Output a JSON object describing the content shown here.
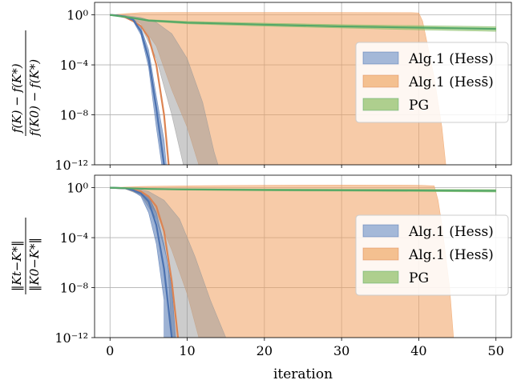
{
  "chart_data": [
    {
      "type": "line",
      "ylabel": {
        "top_left": "f(K)",
        "top_op": "−",
        "top_right": "f(K*)",
        "bottom_left": "f(K0)",
        "bottom_op": "−",
        "bottom_right": "f(K*)"
      },
      "y_scale": "log",
      "ylim_exp": [
        -12,
        1
      ],
      "xlim": [
        -2,
        52
      ],
      "x_ticks": [
        0,
        10,
        20,
        30,
        40,
        50
      ],
      "y_ticks": [
        {
          "exp": 0,
          "label": "10⁰"
        },
        {
          "exp": -4,
          "label": "10⁻⁴"
        },
        {
          "exp": -8,
          "label": "10⁻⁸"
        },
        {
          "exp": -12,
          "label": "10⁻¹²"
        }
      ],
      "grid": true,
      "legend_position": "center-right",
      "series": [
        {
          "name": "Alg.1 (Hess)",
          "color": "#4c72b0",
          "fill": "#4c72b0",
          "mean": [
            [
              0,
              0
            ],
            [
              1,
              -0.05
            ],
            [
              2,
              -0.15
            ],
            [
              3,
              -0.4
            ],
            [
              4,
              -1.3
            ],
            [
              5,
              -3.5
            ],
            [
              6,
              -7.5
            ],
            [
              7,
              -12
            ]
          ],
          "band_lower": [
            [
              0,
              0
            ],
            [
              1,
              -0.06
            ],
            [
              2,
              -0.2
            ],
            [
              3,
              -0.5
            ],
            [
              4,
              -1.6
            ],
            [
              5,
              -4.2
            ],
            [
              6,
              -9
            ],
            [
              6.7,
              -12
            ]
          ],
          "band_upper": [
            [
              0,
              0
            ],
            [
              1,
              -0.04
            ],
            [
              2,
              -0.1
            ],
            [
              3,
              -0.3
            ],
            [
              4,
              -1.0
            ],
            [
              5,
              -2.8
            ],
            [
              6,
              -6.5
            ],
            [
              7,
              -10
            ],
            [
              7.3,
              -12
            ]
          ]
        },
        {
          "name": "Alg.1 (Hess̄)",
          "color": "#dd8452",
          "fill": "#f0a060",
          "mean": [
            [
              0,
              0
            ],
            [
              1,
              -0.05
            ],
            [
              2,
              -0.2
            ],
            [
              3,
              -0.5
            ],
            [
              4,
              -0.9
            ],
            [
              5,
              -1.8
            ],
            [
              6,
              -4.0
            ],
            [
              7,
              -8.0
            ],
            [
              7.6,
              -12
            ]
          ],
          "band_lower": [
            [
              0,
              0
            ],
            [
              2,
              -0.1
            ],
            [
              4,
              -0.7
            ],
            [
              6,
              -2.5
            ],
            [
              8,
              -6
            ],
            [
              10,
              -9
            ],
            [
              11.5,
              -12
            ]
          ],
          "band_upper": [
            [
              0,
              0
            ],
            [
              2,
              0.1
            ],
            [
              4,
              0.18
            ],
            [
              8,
              0.2
            ],
            [
              20,
              0.2
            ],
            [
              30,
              0.19
            ],
            [
              39,
              0.18
            ],
            [
              40,
              0.16
            ],
            [
              40.5,
              -0.5
            ],
            [
              41,
              -2
            ],
            [
              42,
              -5
            ],
            [
              43,
              -9
            ],
            [
              43.5,
              -12
            ]
          ]
        },
        {
          "name": "PG",
          "color": "#55a868",
          "fill": "#8cc06a",
          "mean": [
            [
              0,
              0
            ],
            [
              3,
              -0.25
            ],
            [
              5,
              -0.45
            ],
            [
              10,
              -0.62
            ],
            [
              20,
              -0.78
            ],
            [
              30,
              -0.92
            ],
            [
              40,
              -1.02
            ],
            [
              50,
              -1.12
            ]
          ],
          "band_lower": [
            [
              0,
              0
            ],
            [
              3,
              -0.3
            ],
            [
              5,
              -0.52
            ],
            [
              10,
              -0.72
            ],
            [
              20,
              -0.9
            ],
            [
              30,
              -1.05
            ],
            [
              40,
              -1.2
            ],
            [
              50,
              -1.32
            ]
          ],
          "band_upper": [
            [
              0,
              0
            ],
            [
              3,
              -0.2
            ],
            [
              5,
              -0.38
            ],
            [
              10,
              -0.52
            ],
            [
              20,
              -0.66
            ],
            [
              30,
              -0.78
            ],
            [
              40,
              -0.86
            ],
            [
              50,
              -0.94
            ]
          ]
        },
        {
          "name": "grey envelope",
          "color": "#888888",
          "fill": "#999999",
          "band_lower": [
            [
              0,
              0
            ],
            [
              2,
              -0.15
            ],
            [
              4,
              -0.9
            ],
            [
              6,
              -3.5
            ],
            [
              8,
              -8
            ],
            [
              9.5,
              -12
            ]
          ],
          "band_upper": [
            [
              0,
              0
            ],
            [
              2,
              -0.05
            ],
            [
              4,
              -0.2
            ],
            [
              6,
              -0.6
            ],
            [
              8,
              -1.5
            ],
            [
              10,
              -3.5
            ],
            [
              12,
              -7
            ],
            [
              13.5,
              -11
            ],
            [
              14,
              -12
            ]
          ]
        }
      ]
    },
    {
      "type": "line",
      "xlabel": "iteration",
      "ylabel": {
        "top_norm_expr": "Kt−K*",
        "bottom_norm_expr": "K0−K*"
      },
      "y_scale": "log",
      "ylim_exp": [
        -12,
        1
      ],
      "xlim": [
        -2,
        52
      ],
      "x_ticks": [
        0,
        10,
        20,
        30,
        40,
        50
      ],
      "y_ticks": [
        {
          "exp": 0,
          "label": "10⁰"
        },
        {
          "exp": -4,
          "label": "10⁻⁴"
        },
        {
          "exp": -8,
          "label": "10⁻⁸"
        },
        {
          "exp": -12,
          "label": "10⁻¹²"
        }
      ],
      "grid": true,
      "legend_position": "center-right",
      "series": [
        {
          "name": "Alg.1 (Hess)",
          "color": "#4c72b0",
          "fill": "#4c72b0",
          "mean": [
            [
              0,
              0
            ],
            [
              2,
              -0.05
            ],
            [
              3,
              -0.2
            ],
            [
              4,
              -0.45
            ],
            [
              5,
              -1.1
            ],
            [
              6,
              -3.0
            ],
            [
              7,
              -6.5
            ],
            [
              8,
              -12
            ]
          ],
          "band_lower": [
            [
              0,
              0
            ],
            [
              2,
              -0.08
            ],
            [
              3,
              -0.28
            ],
            [
              4,
              -0.7
            ],
            [
              5,
              -2.0
            ],
            [
              6,
              -4.5
            ],
            [
              7,
              -9
            ],
            [
              7,
              -12
            ]
          ],
          "band_upper": [
            [
              0,
              0
            ],
            [
              2,
              -0.03
            ],
            [
              3,
              -0.12
            ],
            [
              4,
              -0.3
            ],
            [
              5,
              -0.7
            ],
            [
              6,
              -2.0
            ],
            [
              7,
              -4.5
            ],
            [
              8,
              -8
            ],
            [
              8.5,
              -12
            ]
          ]
        },
        {
          "name": "Alg.1 (Hess̄)",
          "color": "#dd8452",
          "fill": "#f0a060",
          "mean": [
            [
              0,
              0
            ],
            [
              2,
              -0.05
            ],
            [
              4,
              -0.3
            ],
            [
              5,
              -0.7
            ],
            [
              6,
              -1.5
            ],
            [
              7,
              -3.5
            ],
            [
              8,
              -7.5
            ],
            [
              8.8,
              -12
            ]
          ],
          "band_lower": [
            [
              0,
              0
            ],
            [
              2,
              -0.1
            ],
            [
              4,
              -0.5
            ],
            [
              6,
              -2.0
            ],
            [
              8,
              -5
            ],
            [
              10,
              -8.5
            ],
            [
              11.5,
              -12
            ]
          ],
          "band_upper": [
            [
              0,
              0
            ],
            [
              2,
              0.05
            ],
            [
              4,
              0.1
            ],
            [
              10,
              0.15
            ],
            [
              20,
              0.2
            ],
            [
              30,
              0.21
            ],
            [
              40,
              0.2
            ],
            [
              42,
              0.15
            ],
            [
              42.5,
              -1
            ],
            [
              43,
              -3
            ],
            [
              44,
              -8
            ],
            [
              44.5,
              -12
            ]
          ]
        },
        {
          "name": "PG",
          "color": "#55a868",
          "fill": "#8cc06a",
          "mean": [
            [
              0,
              0
            ],
            [
              5,
              -0.1
            ],
            [
              10,
              -0.14
            ],
            [
              20,
              -0.18
            ],
            [
              30,
              -0.2
            ],
            [
              40,
              -0.22
            ],
            [
              50,
              -0.25
            ]
          ],
          "band_lower": [
            [
              0,
              0
            ],
            [
              5,
              -0.14
            ],
            [
              10,
              -0.2
            ],
            [
              20,
              -0.25
            ],
            [
              30,
              -0.28
            ],
            [
              40,
              -0.31
            ],
            [
              50,
              -0.35
            ]
          ],
          "band_upper": [
            [
              0,
              0
            ],
            [
              5,
              -0.06
            ],
            [
              10,
              -0.08
            ],
            [
              20,
              -0.11
            ],
            [
              30,
              -0.12
            ],
            [
              40,
              -0.13
            ],
            [
              50,
              -0.15
            ]
          ]
        },
        {
          "name": "grey envelope",
          "color": "#888888",
          "fill": "#999999",
          "band_lower": [
            [
              0,
              0
            ],
            [
              2,
              -0.1
            ],
            [
              4,
              -0.6
            ],
            [
              6,
              -2.5
            ],
            [
              7.5,
              -6
            ],
            [
              8,
              -12
            ]
          ],
          "band_upper": [
            [
              0,
              0
            ],
            [
              3,
              -0.05
            ],
            [
              5,
              -0.3
            ],
            [
              7,
              -1.0
            ],
            [
              9,
              -2.5
            ],
            [
              11,
              -5.5
            ],
            [
              13,
              -9
            ],
            [
              15,
              -12
            ]
          ]
        }
      ]
    }
  ],
  "legend": [
    {
      "label": "Alg.1 (Hess)",
      "fill": "#a4b8d8",
      "stroke": "#4c72b0"
    },
    {
      "label": "Alg.1 (Hess̄)",
      "fill": "#f4c090",
      "stroke": "#dd8452"
    },
    {
      "label": "PG",
      "fill": "#aecf8e",
      "stroke": "#55a868"
    }
  ]
}
